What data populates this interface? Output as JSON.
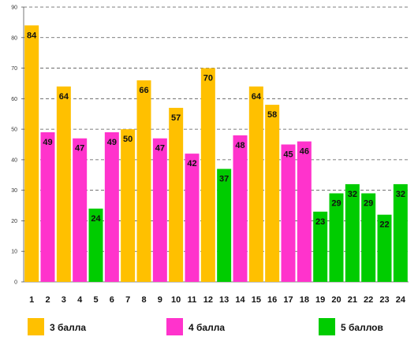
{
  "chart_data": {
    "type": "bar",
    "title": "",
    "xlabel": "",
    "ylabel": "",
    "ylim": [
      0,
      90
    ],
    "yticks": [
      0,
      10,
      20,
      30,
      40,
      50,
      60,
      70,
      80,
      90
    ],
    "grid": true,
    "legend_position": "bottom",
    "categories": [
      "1",
      "2",
      "3",
      "4",
      "5",
      "6",
      "7",
      "8",
      "9",
      "10",
      "11",
      "12",
      "13",
      "14",
      "15",
      "16",
      "17",
      "18",
      "19",
      "20",
      "21",
      "22",
      "23",
      "24"
    ],
    "values": [
      84,
      49,
      64,
      47,
      24,
      49,
      50,
      66,
      47,
      57,
      42,
      70,
      37,
      48,
      64,
      58,
      45,
      46,
      23,
      29,
      32,
      29,
      22,
      32
    ],
    "groups": [
      "3 балла",
      "4 балла",
      "3 балла",
      "4 балла",
      "5 баллов",
      "4 балла",
      "3 балла",
      "3 балла",
      "4 балла",
      "3 балла",
      "4 балла",
      "3 балла",
      "5 баллов",
      "4 балла",
      "3 балла",
      "3 балла",
      "4 балла",
      "4 балла",
      "5 баллов",
      "5 баллов",
      "5 баллов",
      "5 баллов",
      "5 баллов",
      "5 баллов"
    ],
    "series": [
      {
        "name": "3 балла",
        "color": "#FFC000"
      },
      {
        "name": "4 балла",
        "color": "#FF33CC"
      },
      {
        "name": "5 баллов",
        "color": "#00CC00"
      }
    ]
  }
}
